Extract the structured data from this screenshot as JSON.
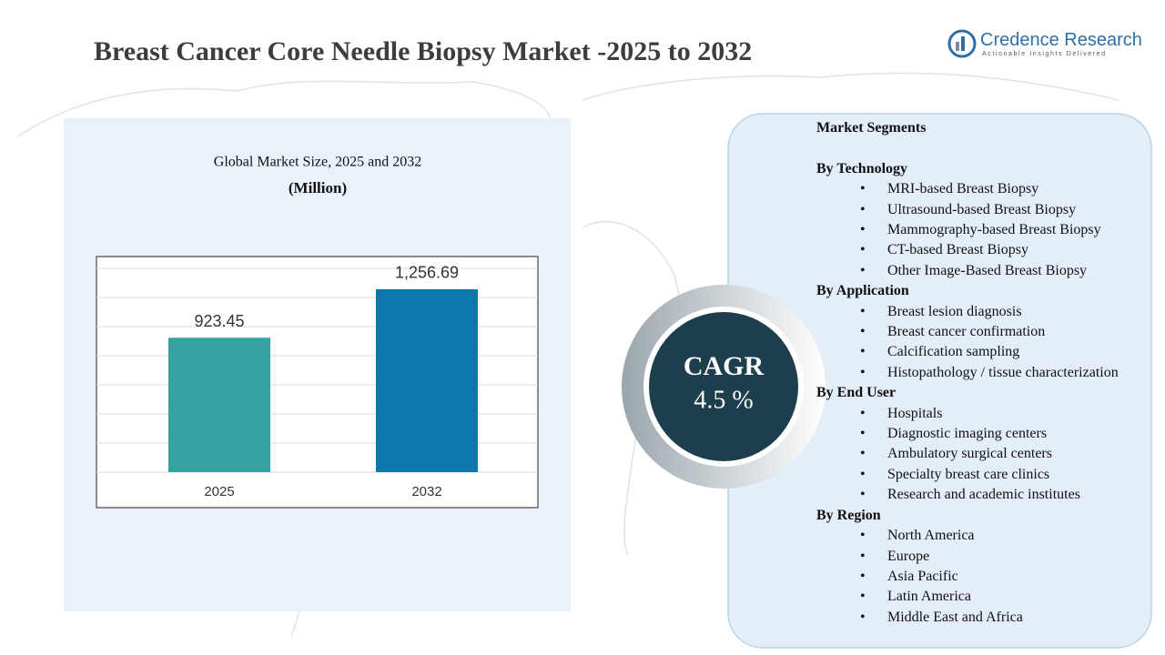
{
  "title": "Breast Cancer Core Needle Biopsy Market -2025 to 2032",
  "logo": {
    "name": "Credence Research",
    "tagline": "Actionable Insights Delivered"
  },
  "chart_data": {
    "type": "bar",
    "title": "Global Market Size, 2025 and 2032",
    "subtitle": "(Million)",
    "categories": [
      "2025",
      "2032"
    ],
    "values": [
      923.45,
      1256.69
    ],
    "value_labels": [
      "923.45",
      "1,256.69"
    ],
    "colors": [
      "#35a3a0",
      "#0a78aa"
    ],
    "ylim": [
      0,
      1400
    ],
    "yticks": [
      0,
      200,
      400,
      600,
      800,
      1000,
      1200,
      1400
    ],
    "grid": true
  },
  "cagr": {
    "label": "CAGR",
    "value": "4.5 %"
  },
  "segments": {
    "title": "Market Segments",
    "groups": [
      {
        "name": "By Technology",
        "items": [
          "MRI-based Breast Biopsy",
          "Ultrasound-based Breast Biopsy",
          "Mammography-based Breast Biopsy",
          "CT-based Breast Biopsy",
          "Other Image-Based Breast Biopsy"
        ]
      },
      {
        "name": "By Application",
        "items": [
          "Breast lesion diagnosis",
          "Breast cancer confirmation",
          "Calcification  sampling",
          "Histopathology / tissue characterization"
        ]
      },
      {
        "name": "By End User",
        "items": [
          "Hospitals",
          "Diagnostic imaging centers",
          "Ambulatory surgical centers",
          "Specialty breast care clinics",
          "Research and academic institutes"
        ]
      },
      {
        "name": "By Region",
        "items": [
          "North America",
          "Europe",
          "Asia Pacific",
          "Latin America",
          "Middle East and Africa"
        ]
      }
    ]
  }
}
